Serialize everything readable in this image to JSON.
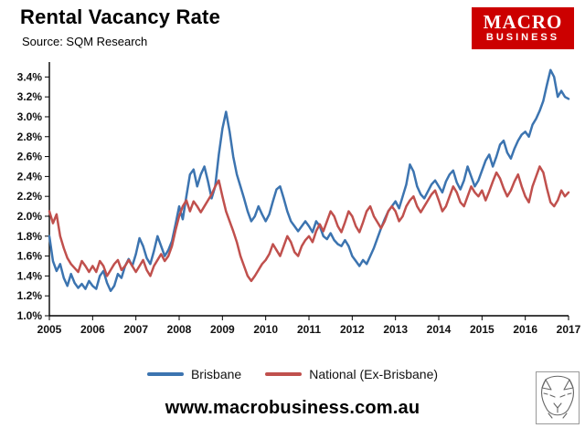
{
  "header": {
    "title": "Rental Vacancy Rate",
    "source": "Source: SQM Research"
  },
  "logo": {
    "line1": "MACRO",
    "line2": "BUSINESS",
    "bg_color": "#cc0000"
  },
  "legend": {
    "items": [
      {
        "label": "Brisbane",
        "color": "#3c74b0"
      },
      {
        "label": "National (Ex-Brisbane)",
        "color": "#c0504d"
      }
    ]
  },
  "footer": {
    "url": "www.macrobusiness.com.au"
  },
  "chart_data": {
    "type": "line",
    "title": "Rental Vacancy Rate",
    "xlabel": "",
    "ylabel": "",
    "x_start_year": 2005,
    "x_end_year": 2017,
    "points_per_year": 12,
    "x_ticks": [
      2005,
      2006,
      2007,
      2008,
      2009,
      2010,
      2011,
      2012,
      2013,
      2014,
      2015,
      2016,
      2017
    ],
    "ylim": [
      1.0,
      3.55
    ],
    "y_ticks": [
      1.0,
      1.2,
      1.4,
      1.6,
      1.8,
      2.0,
      2.2,
      2.4,
      2.6,
      2.8,
      3.0,
      3.2,
      3.4
    ],
    "y_tick_suffix": "%",
    "grid": false,
    "legend_position": "bottom",
    "series": [
      {
        "name": "Brisbane",
        "color": "#3c74b0",
        "values": [
          1.8,
          1.55,
          1.45,
          1.52,
          1.38,
          1.3,
          1.42,
          1.33,
          1.28,
          1.32,
          1.27,
          1.35,
          1.3,
          1.27,
          1.4,
          1.45,
          1.33,
          1.25,
          1.3,
          1.42,
          1.38,
          1.5,
          1.57,
          1.5,
          1.62,
          1.78,
          1.7,
          1.58,
          1.52,
          1.65,
          1.8,
          1.7,
          1.6,
          1.66,
          1.75,
          1.92,
          2.1,
          1.97,
          2.2,
          2.42,
          2.47,
          2.3,
          2.42,
          2.5,
          2.35,
          2.18,
          2.3,
          2.62,
          2.88,
          3.05,
          2.85,
          2.6,
          2.42,
          2.3,
          2.18,
          2.05,
          1.95,
          2.0,
          2.1,
          2.02,
          1.95,
          2.02,
          2.15,
          2.27,
          2.3,
          2.18,
          2.05,
          1.95,
          1.9,
          1.85,
          1.9,
          1.95,
          1.9,
          1.84,
          1.95,
          1.9,
          1.8,
          1.77,
          1.83,
          1.76,
          1.72,
          1.7,
          1.76,
          1.7,
          1.6,
          1.55,
          1.5,
          1.56,
          1.52,
          1.6,
          1.68,
          1.78,
          1.88,
          1.97,
          2.05,
          2.1,
          2.15,
          2.08,
          2.2,
          2.32,
          2.52,
          2.45,
          2.3,
          2.22,
          2.18,
          2.25,
          2.32,
          2.36,
          2.3,
          2.24,
          2.35,
          2.42,
          2.46,
          2.34,
          2.27,
          2.36,
          2.5,
          2.4,
          2.3,
          2.36,
          2.46,
          2.56,
          2.62,
          2.5,
          2.6,
          2.72,
          2.76,
          2.64,
          2.58,
          2.68,
          2.76,
          2.82,
          2.85,
          2.8,
          2.92,
          2.98,
          3.06,
          3.16,
          3.32,
          3.47,
          3.4,
          3.2,
          3.26,
          3.2,
          3.18
        ]
      },
      {
        "name": "National (Ex-Brisbane)",
        "color": "#c0504d",
        "values": [
          2.05,
          1.93,
          2.02,
          1.8,
          1.68,
          1.58,
          1.52,
          1.48,
          1.44,
          1.55,
          1.5,
          1.44,
          1.5,
          1.44,
          1.55,
          1.5,
          1.4,
          1.46,
          1.52,
          1.56,
          1.46,
          1.5,
          1.56,
          1.5,
          1.44,
          1.5,
          1.56,
          1.46,
          1.4,
          1.5,
          1.56,
          1.62,
          1.55,
          1.6,
          1.7,
          1.86,
          2.0,
          2.1,
          2.16,
          2.05,
          2.15,
          2.1,
          2.04,
          2.1,
          2.16,
          2.22,
          2.3,
          2.36,
          2.2,
          2.05,
          1.95,
          1.85,
          1.74,
          1.6,
          1.5,
          1.4,
          1.35,
          1.4,
          1.46,
          1.52,
          1.56,
          1.62,
          1.72,
          1.66,
          1.6,
          1.7,
          1.8,
          1.74,
          1.64,
          1.6,
          1.7,
          1.76,
          1.8,
          1.74,
          1.85,
          1.92,
          1.85,
          1.95,
          2.05,
          2.0,
          1.9,
          1.84,
          1.94,
          2.05,
          2.0,
          1.9,
          1.84,
          1.94,
          2.05,
          2.1,
          2.0,
          1.94,
          1.88,
          1.95,
          2.05,
          2.1,
          2.05,
          1.95,
          2.0,
          2.1,
          2.16,
          2.2,
          2.1,
          2.04,
          2.1,
          2.16,
          2.22,
          2.26,
          2.16,
          2.05,
          2.1,
          2.2,
          2.3,
          2.24,
          2.14,
          2.1,
          2.2,
          2.3,
          2.24,
          2.2,
          2.26,
          2.16,
          2.25,
          2.35,
          2.44,
          2.38,
          2.28,
          2.2,
          2.26,
          2.35,
          2.42,
          2.3,
          2.2,
          2.14,
          2.3,
          2.4,
          2.5,
          2.44,
          2.28,
          2.14,
          2.1,
          2.16,
          2.26,
          2.2,
          2.24
        ]
      }
    ]
  }
}
